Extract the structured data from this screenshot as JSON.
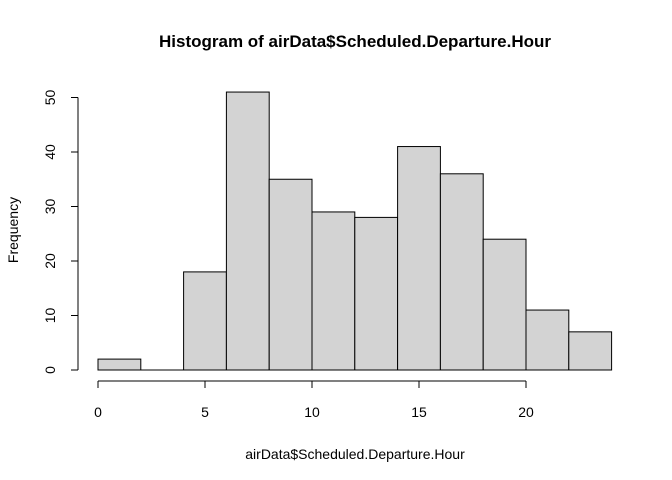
{
  "chart_data": {
    "type": "bar",
    "title": "Histogram of airData$Scheduled.Departure.Hour",
    "xlabel": "airData$Scheduled.Departure.Hour",
    "ylabel": "Frequency",
    "bins": [
      {
        "start": 0,
        "end": 2,
        "count": 2
      },
      {
        "start": 2,
        "end": 4,
        "count": 0
      },
      {
        "start": 4,
        "end": 6,
        "count": 18
      },
      {
        "start": 6,
        "end": 8,
        "count": 51
      },
      {
        "start": 8,
        "end": 10,
        "count": 35
      },
      {
        "start": 10,
        "end": 12,
        "count": 29
      },
      {
        "start": 12,
        "end": 14,
        "count": 28
      },
      {
        "start": 14,
        "end": 16,
        "count": 41
      },
      {
        "start": 16,
        "end": 18,
        "count": 36
      },
      {
        "start": 18,
        "end": 20,
        "count": 24
      },
      {
        "start": 20,
        "end": 22,
        "count": 11
      },
      {
        "start": 22,
        "end": 24,
        "count": 7
      }
    ],
    "xlim": [
      0,
      24
    ],
    "ylim": [
      0,
      51
    ],
    "x_ticks": [
      0,
      5,
      10,
      15,
      20
    ],
    "y_ticks": [
      0,
      10,
      20,
      30,
      40,
      50
    ],
    "grid": false,
    "colors": {
      "bar_fill": "#d3d3d3",
      "bar_stroke": "#000000"
    }
  }
}
